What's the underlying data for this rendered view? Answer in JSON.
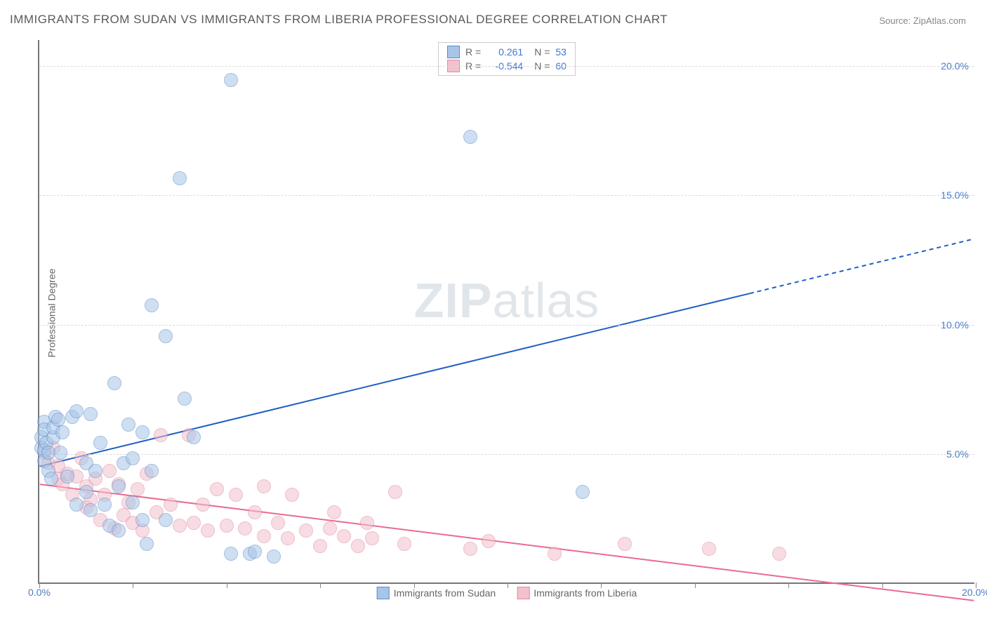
{
  "title": "IMMIGRANTS FROM SUDAN VS IMMIGRANTS FROM LIBERIA PROFESSIONAL DEGREE CORRELATION CHART",
  "source_label": "Source: ZipAtlas.com",
  "ylabel": "Professional Degree",
  "watermark": {
    "bold": "ZIP",
    "rest": "atlas"
  },
  "chart": {
    "type": "scatter",
    "xlim": [
      0,
      20
    ],
    "ylim": [
      0,
      21
    ],
    "background_color": "#ffffff",
    "grid_color": "#dcdcdc",
    "axis_color": "#777777",
    "ytick_labels": [
      {
        "value": 5,
        "label": "5.0%"
      },
      {
        "value": 10,
        "label": "10.0%"
      },
      {
        "value": 15,
        "label": "15.0%"
      },
      {
        "value": 20,
        "label": "20.0%"
      }
    ],
    "xtick_labels": [
      {
        "value": 0,
        "label": "0.0%"
      },
      {
        "value": 20,
        "label": "20.0%"
      }
    ],
    "xtick_marks": [
      0,
      2,
      4,
      6,
      8,
      10,
      12,
      14,
      16,
      18,
      20
    ],
    "marker_radius": 10,
    "marker_opacity": 0.55,
    "label_fontsize": 14,
    "tick_color": "#4a7ec7",
    "series": {
      "sudan": {
        "label": "Immigrants from Sudan",
        "fill_color": "#a8c5e8",
        "stroke_color": "#5b8cc9",
        "trend_color": "#1f5fc4",
        "trend_width": 2,
        "trend": {
          "x1": 0,
          "y1": 4.5,
          "x2": 20,
          "y2": 13.3,
          "solid_until_x": 15.2
        },
        "R": "0.261",
        "N": "53",
        "points": [
          [
            0.05,
            5.2
          ],
          [
            0.05,
            5.6
          ],
          [
            0.1,
            6.2
          ],
          [
            0.1,
            5.9
          ],
          [
            0.1,
            5.1
          ],
          [
            0.1,
            4.7
          ],
          [
            0.15,
            5.4
          ],
          [
            0.2,
            5.0
          ],
          [
            0.2,
            4.3
          ],
          [
            0.25,
            4.0
          ],
          [
            0.3,
            5.6
          ],
          [
            0.3,
            6.0
          ],
          [
            0.35,
            6.4
          ],
          [
            0.4,
            6.3
          ],
          [
            0.45,
            5.0
          ],
          [
            0.5,
            5.8
          ],
          [
            0.6,
            4.1
          ],
          [
            0.7,
            6.4
          ],
          [
            0.8,
            6.6
          ],
          [
            0.8,
            3.0
          ],
          [
            1.0,
            3.5
          ],
          [
            1.0,
            4.6
          ],
          [
            1.1,
            6.5
          ],
          [
            1.1,
            2.8
          ],
          [
            1.2,
            4.3
          ],
          [
            1.3,
            5.4
          ],
          [
            1.4,
            3.0
          ],
          [
            1.5,
            2.2
          ],
          [
            1.6,
            7.7
          ],
          [
            1.7,
            3.7
          ],
          [
            1.7,
            2.0
          ],
          [
            1.8,
            4.6
          ],
          [
            1.9,
            6.1
          ],
          [
            2.0,
            3.1
          ],
          [
            2.0,
            4.8
          ],
          [
            2.2,
            5.8
          ],
          [
            2.2,
            2.4
          ],
          [
            2.3,
            1.5
          ],
          [
            2.4,
            4.3
          ],
          [
            2.4,
            10.7
          ],
          [
            2.7,
            2.4
          ],
          [
            2.7,
            9.5
          ],
          [
            3.0,
            15.6
          ],
          [
            3.1,
            7.1
          ],
          [
            3.3,
            5.6
          ],
          [
            4.1,
            1.1
          ],
          [
            4.1,
            19.4
          ],
          [
            4.5,
            1.1
          ],
          [
            4.6,
            1.2
          ],
          [
            5.0,
            1.0
          ],
          [
            9.2,
            17.2
          ],
          [
            11.6,
            3.5
          ]
        ]
      },
      "liberia": {
        "label": "Immigrants from Liberia",
        "fill_color": "#f3c1cd",
        "stroke_color": "#e08aa0",
        "trend_color": "#e96b8f",
        "trend_width": 2,
        "trend": {
          "x1": 0,
          "y1": 3.8,
          "x2": 20,
          "y2": -0.7,
          "solid_until_x": 20
        },
        "R": "-0.544",
        "N": "60",
        "points": [
          [
            0.1,
            5.0
          ],
          [
            0.2,
            4.6
          ],
          [
            0.3,
            5.2
          ],
          [
            0.4,
            4.0
          ],
          [
            0.4,
            4.5
          ],
          [
            0.5,
            3.8
          ],
          [
            0.6,
            4.2
          ],
          [
            0.7,
            3.4
          ],
          [
            0.8,
            4.1
          ],
          [
            0.9,
            4.8
          ],
          [
            1.0,
            2.9
          ],
          [
            1.0,
            3.7
          ],
          [
            1.1,
            3.2
          ],
          [
            1.2,
            4.0
          ],
          [
            1.3,
            2.4
          ],
          [
            1.4,
            3.4
          ],
          [
            1.5,
            4.3
          ],
          [
            1.6,
            2.1
          ],
          [
            1.7,
            3.8
          ],
          [
            1.8,
            2.6
          ],
          [
            1.9,
            3.1
          ],
          [
            2.0,
            2.3
          ],
          [
            2.1,
            3.6
          ],
          [
            2.2,
            2.0
          ],
          [
            2.3,
            4.2
          ],
          [
            2.5,
            2.7
          ],
          [
            2.6,
            5.7
          ],
          [
            2.8,
            3.0
          ],
          [
            3.0,
            2.2
          ],
          [
            3.2,
            5.7
          ],
          [
            3.3,
            2.3
          ],
          [
            3.5,
            3.0
          ],
          [
            3.6,
            2.0
          ],
          [
            3.8,
            3.6
          ],
          [
            4.0,
            2.2
          ],
          [
            4.2,
            3.4
          ],
          [
            4.4,
            2.1
          ],
          [
            4.6,
            2.7
          ],
          [
            4.8,
            1.8
          ],
          [
            4.8,
            3.7
          ],
          [
            5.1,
            2.3
          ],
          [
            5.3,
            1.7
          ],
          [
            5.4,
            3.4
          ],
          [
            5.7,
            2.0
          ],
          [
            6.0,
            1.4
          ],
          [
            6.2,
            2.1
          ],
          [
            6.3,
            2.7
          ],
          [
            6.5,
            1.8
          ],
          [
            6.8,
            1.4
          ],
          [
            7.0,
            2.3
          ],
          [
            7.1,
            1.7
          ],
          [
            7.6,
            3.5
          ],
          [
            7.8,
            1.5
          ],
          [
            9.2,
            1.3
          ],
          [
            9.6,
            1.6
          ],
          [
            11.0,
            1.1
          ],
          [
            12.5,
            1.5
          ],
          [
            14.3,
            1.3
          ],
          [
            15.8,
            1.1
          ]
        ]
      }
    }
  },
  "legend_top": {
    "border_color": "#cccccc",
    "text_color_label": "#666666",
    "text_color_value": "#3b78d8",
    "rows": [
      {
        "series": "sudan",
        "R_label": "R =",
        "N_label": "N ="
      },
      {
        "series": "liberia",
        "R_label": "R =",
        "N_label": "N ="
      }
    ]
  },
  "legend_bottom": {
    "items": [
      {
        "series": "sudan"
      },
      {
        "series": "liberia"
      }
    ]
  }
}
